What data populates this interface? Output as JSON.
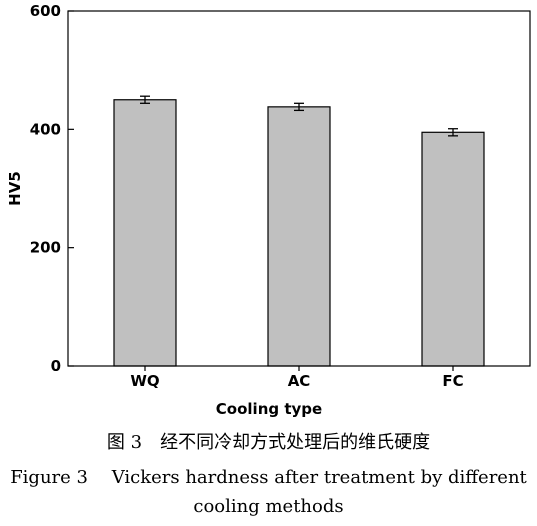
{
  "chart_data": {
    "type": "bar",
    "categories": [
      "WQ",
      "AC",
      "FC"
    ],
    "values": [
      450,
      438,
      395
    ],
    "errors": [
      6,
      6,
      6
    ],
    "xlabel": "Cooling type",
    "ylabel": "HV5",
    "ylim": [
      0,
      600
    ],
    "yticks": [
      0,
      200,
      400,
      600
    ],
    "bar_color": "#c0c0c0",
    "grid": false
  },
  "caption": {
    "zh": "图 3　经不同冷却方式处理后的维氏硬度",
    "en_line1": "Figure 3　 Vickers hardness after treatment by different",
    "en_line2": "cooling methods"
  }
}
